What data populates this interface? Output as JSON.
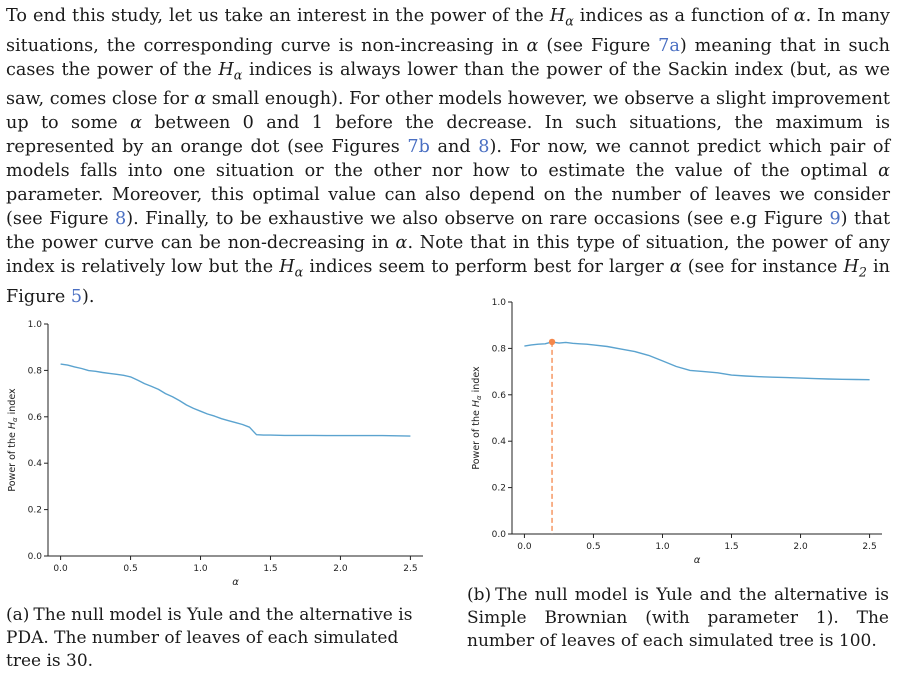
{
  "paragraph": {
    "parts": [
      {
        "t": "To end this study, let us take an interest in the power of the "
      },
      {
        "m": "Hα"
      },
      {
        "t": " indices as a function of "
      },
      {
        "m": "α"
      },
      {
        "t": ". In many situations, the corresponding curve is non-increasing in "
      },
      {
        "m": "α"
      },
      {
        "t": " (see Figure "
      },
      {
        "l": "7a"
      },
      {
        "t": ") meaning that in such cases the power of the "
      },
      {
        "m": "Hα"
      },
      {
        "t": " indices is always lower than the power of the Sackin index (but, as we saw, comes close for "
      },
      {
        "m": "α"
      },
      {
        "t": " small enough). For other models however, we observe a slight improvement up to some "
      },
      {
        "m": "α"
      },
      {
        "t": " between 0 and 1 before the decrease. In such situations, the maximum is represented by an orange dot (see Figures "
      },
      {
        "l": "7b"
      },
      {
        "t": " and "
      },
      {
        "l": "8"
      },
      {
        "t": "). For now, we cannot predict which pair of models falls into one situation or the other nor how to estimate the value of the optimal "
      },
      {
        "m": "α"
      },
      {
        "t": " parameter. Moreover, this optimal value can also depend on the number of leaves we consider (see Figure "
      },
      {
        "l": "8"
      },
      {
        "t": "). Finally, to be exhaustive we also observe on rare occasions (see e.g Figure "
      },
      {
        "l": "9"
      },
      {
        "t": ") that the power curve can be non-decreasing in "
      },
      {
        "m": "α"
      },
      {
        "t": ". Note that in this type of situation, the power of any index is relatively low but the "
      },
      {
        "m": "Hα"
      },
      {
        "t": " indices seem to perform best for larger "
      },
      {
        "m": "α"
      },
      {
        "t": " (see for instance "
      },
      {
        "m": "H2"
      },
      {
        "t": " in Figure "
      },
      {
        "l": "5"
      },
      {
        "t": ")."
      }
    ]
  },
  "figures": [
    {
      "caption_label": "(a)",
      "caption_text": "The null model is Yule and the alternative is PDA. The number of leaves of each simulated tree is 30."
    },
    {
      "caption_label": "(b)",
      "caption_text": "The null model is Yule and the alternative is Simple Brownian (with parameter 1). The number of leaves of each simulated tree is 100."
    }
  ],
  "chart_data": [
    {
      "type": "line",
      "xlabel": "α",
      "ylabel": "Power of the Hα index",
      "xlim": [
        -0.09,
        2.59
      ],
      "ylim": [
        0.0,
        1.0
      ],
      "xticks": [
        "0.0",
        "0.5",
        "1.0",
        "1.5",
        "2.0",
        "2.5"
      ],
      "yticks": [
        "0.0",
        "0.2",
        "0.4",
        "0.6",
        "0.8",
        "1.0"
      ],
      "line_color": "#5ba3cf",
      "grid": false,
      "series": [
        {
          "x": [
            0.0,
            0.05,
            0.1,
            0.15,
            0.2,
            0.25,
            0.3,
            0.35,
            0.4,
            0.45,
            0.5,
            0.55,
            0.6,
            0.65,
            0.7,
            0.75,
            0.8,
            0.85,
            0.9,
            0.95,
            1.0,
            1.05,
            1.1,
            1.15,
            1.2,
            1.25,
            1.3,
            1.35,
            1.4,
            1.45,
            1.5,
            1.6,
            1.7,
            1.8,
            1.9,
            2.0,
            2.1,
            2.2,
            2.3,
            2.4,
            2.5
          ],
          "y": [
            0.827,
            0.823,
            0.815,
            0.808,
            0.799,
            0.796,
            0.791,
            0.787,
            0.783,
            0.779,
            0.772,
            0.758,
            0.743,
            0.731,
            0.718,
            0.7,
            0.686,
            0.67,
            0.651,
            0.636,
            0.624,
            0.612,
            0.603,
            0.592,
            0.583,
            0.575,
            0.567,
            0.555,
            0.523,
            0.521,
            0.521,
            0.52,
            0.52,
            0.52,
            0.519,
            0.519,
            0.519,
            0.519,
            0.519,
            0.518,
            0.517
          ]
        }
      ]
    },
    {
      "type": "line",
      "xlabel": "α",
      "ylabel": "Power of the Hα index",
      "xlim": [
        -0.09,
        2.59
      ],
      "ylim": [
        0.0,
        1.0
      ],
      "xticks": [
        "0.0",
        "0.5",
        "1.0",
        "1.5",
        "2.0",
        "2.5"
      ],
      "yticks": [
        "0.0",
        "0.2",
        "0.4",
        "0.6",
        "0.8",
        "1.0"
      ],
      "line_color": "#5ba3cf",
      "marker_color": "#f4874b",
      "grid": false,
      "maximum": {
        "x": 0.2,
        "y": 0.828
      },
      "series": [
        {
          "x": [
            0.0,
            0.05,
            0.1,
            0.15,
            0.2,
            0.25,
            0.3,
            0.35,
            0.4,
            0.45,
            0.5,
            0.6,
            0.7,
            0.8,
            0.9,
            1.0,
            1.1,
            1.2,
            1.3,
            1.4,
            1.5,
            1.6,
            1.7,
            1.8,
            1.9,
            2.0,
            2.1,
            2.2,
            2.3,
            2.4,
            2.5
          ],
          "y": [
            0.81,
            0.815,
            0.818,
            0.82,
            0.828,
            0.823,
            0.826,
            0.822,
            0.82,
            0.818,
            0.815,
            0.808,
            0.797,
            0.786,
            0.77,
            0.746,
            0.722,
            0.705,
            0.7,
            0.695,
            0.685,
            0.681,
            0.678,
            0.676,
            0.674,
            0.672,
            0.67,
            0.668,
            0.667,
            0.666,
            0.665
          ]
        }
      ]
    }
  ]
}
